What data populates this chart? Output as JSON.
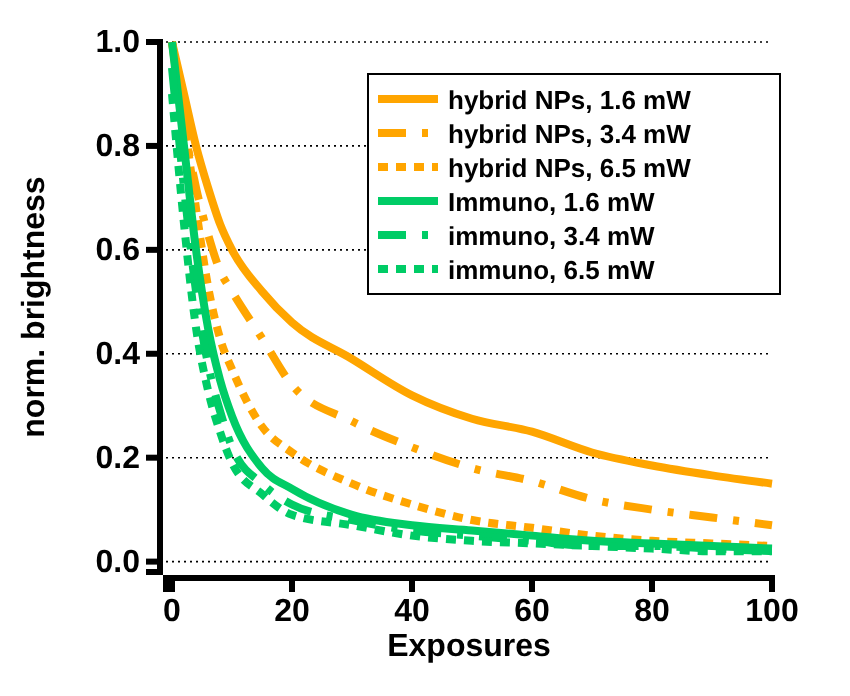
{
  "chart_data": {
    "type": "line",
    "xlabel": "Exposures",
    "ylabel": "norm. brightness",
    "xlim": [
      -1,
      100
    ],
    "ylim": [
      -0.02,
      1.0
    ],
    "xticks": [
      0,
      20,
      40,
      60,
      80,
      100
    ],
    "yticks": [
      {
        "value": 0,
        "label": "0.0"
      },
      {
        "value": 0.2,
        "label": "0.2"
      },
      {
        "value": 0.4,
        "label": "0.4"
      },
      {
        "value": 0.6,
        "label": "0.6"
      },
      {
        "value": 0.8,
        "label": "0.8"
      },
      {
        "value": 1,
        "label": "1.0"
      }
    ],
    "grid": "y",
    "legend": "top right",
    "x": [
      0,
      2,
      4,
      6,
      8,
      10,
      15,
      20,
      30,
      40,
      50,
      60,
      70,
      80,
      90,
      100
    ],
    "series": [
      {
        "name": "hybrid NPs, 1.6 mW",
        "color": "#ffa500",
        "line_style": "solid",
        "values": [
          1.0,
          0.9,
          0.8,
          0.72,
          0.65,
          0.6,
          0.52,
          0.46,
          0.39,
          0.32,
          0.275,
          0.25,
          0.21,
          0.185,
          0.166,
          0.15
        ]
      },
      {
        "name": "hybrid NPs, 3.4 mW",
        "color": "#ffa500",
        "line_style": "dashed",
        "values": [
          1.0,
          0.84,
          0.72,
          0.63,
          0.56,
          0.52,
          0.43,
          0.34,
          0.27,
          0.22,
          0.18,
          0.155,
          0.12,
          0.1,
          0.085,
          0.07
        ]
      },
      {
        "name": "hybrid NPs, 6.5 mW",
        "color": "#ffa500",
        "line_style": "dotted",
        "values": [
          1.0,
          0.85,
          0.68,
          0.53,
          0.43,
          0.37,
          0.26,
          0.21,
          0.15,
          0.11,
          0.08,
          0.065,
          0.05,
          0.04,
          0.035,
          0.03
        ]
      },
      {
        "name": "Immuno, 1.6 mW",
        "color": "#00cc66",
        "line_style": "solid",
        "values": [
          1.0,
          0.8,
          0.6,
          0.45,
          0.35,
          0.28,
          0.18,
          0.14,
          0.09,
          0.07,
          0.06,
          0.05,
          0.04,
          0.035,
          0.03,
          0.025
        ]
      },
      {
        "name": "immuno, 3.4 mW",
        "color": "#00cc66",
        "line_style": "dashed",
        "values": [
          0.95,
          0.72,
          0.52,
          0.38,
          0.29,
          0.22,
          0.15,
          0.11,
          0.08,
          0.06,
          0.05,
          0.04,
          0.03,
          0.03,
          0.025,
          0.02
        ]
      },
      {
        "name": "immuno, 6.5 mW",
        "color": "#00cc66",
        "line_style": "dotted",
        "values": [
          0.9,
          0.65,
          0.45,
          0.33,
          0.25,
          0.19,
          0.13,
          0.09,
          0.07,
          0.05,
          0.04,
          0.035,
          0.03,
          0.025,
          0.02,
          0.02
        ]
      }
    ]
  }
}
